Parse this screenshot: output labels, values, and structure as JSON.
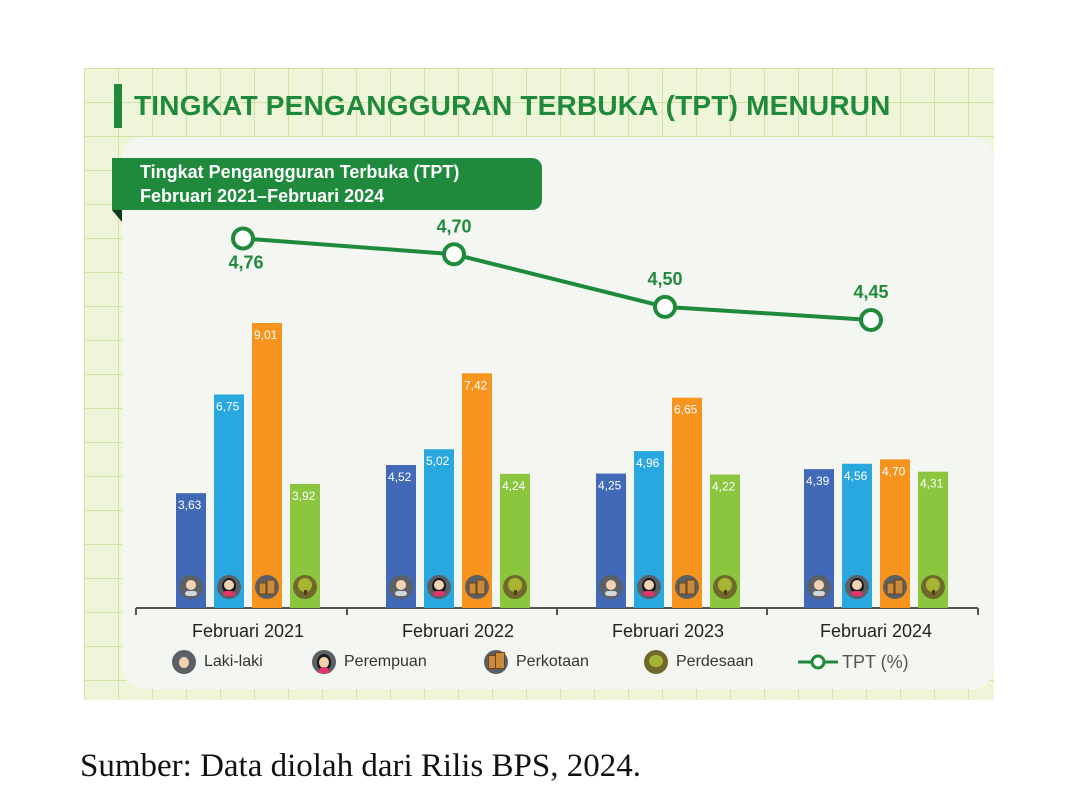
{
  "title": "TINGKAT PENGANGGURAN TERBUKA (TPT) MENURUN",
  "subtitle_line1": "Tingkat Pengangguran Terbuka (TPT)",
  "subtitle_line2": "Februari 2021–Februari 2024",
  "source": "Sumber: Data diolah dari Rilis BPS, 2024.",
  "colors": {
    "laki_laki": "#4169b8",
    "perempuan": "#29a8e0",
    "perkotaan": "#f7941d",
    "perdesaan": "#8cc63f",
    "tpt_line": "#1f8a3c"
  },
  "legend": {
    "laki_laki": "Laki-laki",
    "perempuan": "Perempuan",
    "perkotaan": "Perkotaan",
    "perdesaan": "Perdesaan",
    "tpt": "TPT (%)"
  },
  "chart_data": {
    "type": "bar",
    "title": "Tingkat Pengangguran Terbuka (TPT) Februari 2021–Februari 2024",
    "categories": [
      "Februari 2021",
      "Februari 2022",
      "Februari 2023",
      "Februari 2024"
    ],
    "series": [
      {
        "name": "Laki-laki",
        "key": "laki_laki",
        "values": [
          3.63,
          4.52,
          4.25,
          4.39
        ],
        "labels": [
          "3,63",
          "4,52",
          "4,25",
          "4,39"
        ]
      },
      {
        "name": "Perempuan",
        "key": "perempuan",
        "values": [
          6.75,
          5.02,
          4.96,
          4.56
        ],
        "labels": [
          "6,75",
          "5,02",
          "4,96",
          "4,56"
        ]
      },
      {
        "name": "Perkotaan",
        "key": "perkotaan",
        "values": [
          9.01,
          7.42,
          6.65,
          4.7
        ],
        "labels": [
          "9,01",
          "7,42",
          "6,65",
          "4,70"
        ]
      },
      {
        "name": "Perdesaan",
        "key": "perdesaan",
        "values": [
          3.92,
          4.24,
          4.22,
          4.31
        ],
        "labels": [
          "3,92",
          "4,24",
          "4,22",
          "4,31"
        ]
      }
    ],
    "line_series": {
      "name": "TPT (%)",
      "values": [
        4.76,
        4.7,
        4.5,
        4.45
      ],
      "labels": [
        "4,76",
        "4,70",
        "4,50",
        "4,45"
      ]
    },
    "ylim": [
      0,
      10
    ],
    "grid": false,
    "legend_position": "bottom"
  }
}
